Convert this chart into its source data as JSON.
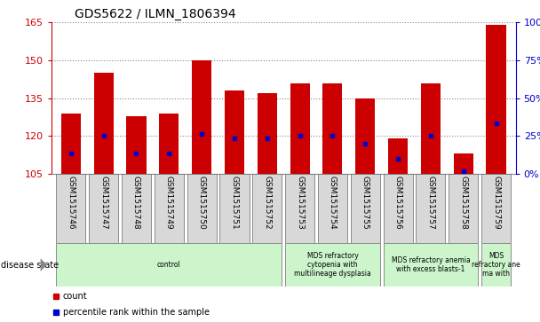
{
  "title": "GDS5622 / ILMN_1806394",
  "samples": [
    "GSM1515746",
    "GSM1515747",
    "GSM1515748",
    "GSM1515749",
    "GSM1515750",
    "GSM1515751",
    "GSM1515752",
    "GSM1515753",
    "GSM1515754",
    "GSM1515755",
    "GSM1515756",
    "GSM1515757",
    "GSM1515758",
    "GSM1515759"
  ],
  "counts": [
    129,
    145,
    128,
    129,
    150,
    138,
    137,
    141,
    141,
    135,
    119,
    141,
    113,
    164
  ],
  "percentile_vals": [
    113,
    120,
    113,
    113,
    121,
    119,
    119,
    120,
    120,
    117,
    111,
    120,
    106,
    125
  ],
  "bar_base": 105,
  "ylim_left": [
    105,
    165
  ],
  "ylim_right": [
    0,
    100
  ],
  "yticks_left": [
    105,
    120,
    135,
    150,
    165
  ],
  "yticks_right": [
    0,
    25,
    50,
    75,
    100
  ],
  "bar_color": "#cc0000",
  "percentile_color": "#0000cc",
  "grid_color": "#888888",
  "sample_box_color": "#d8d8d8",
  "sample_box_edge": "#666666",
  "disease_group_color": "#ccf5cc",
  "disease_groups": [
    {
      "label": "control",
      "start": 0,
      "end": 7
    },
    {
      "label": "MDS refractory\ncytopenia with\nmultilineage dysplasia",
      "start": 7,
      "end": 10
    },
    {
      "label": "MDS refractory anemia\nwith excess blasts-1",
      "start": 10,
      "end": 13
    },
    {
      "label": "MDS\nrefractory ane\nma with",
      "start": 13,
      "end": 14
    }
  ],
  "legend_items": [
    {
      "label": "count",
      "color": "#cc0000"
    },
    {
      "label": "percentile rank within the sample",
      "color": "#0000cc"
    }
  ],
  "title_fontsize": 10,
  "tick_fontsize": 8,
  "label_fontsize": 6.5,
  "disease_fontsize": 5.5,
  "legend_fontsize": 7,
  "disease_state_fontsize": 7
}
